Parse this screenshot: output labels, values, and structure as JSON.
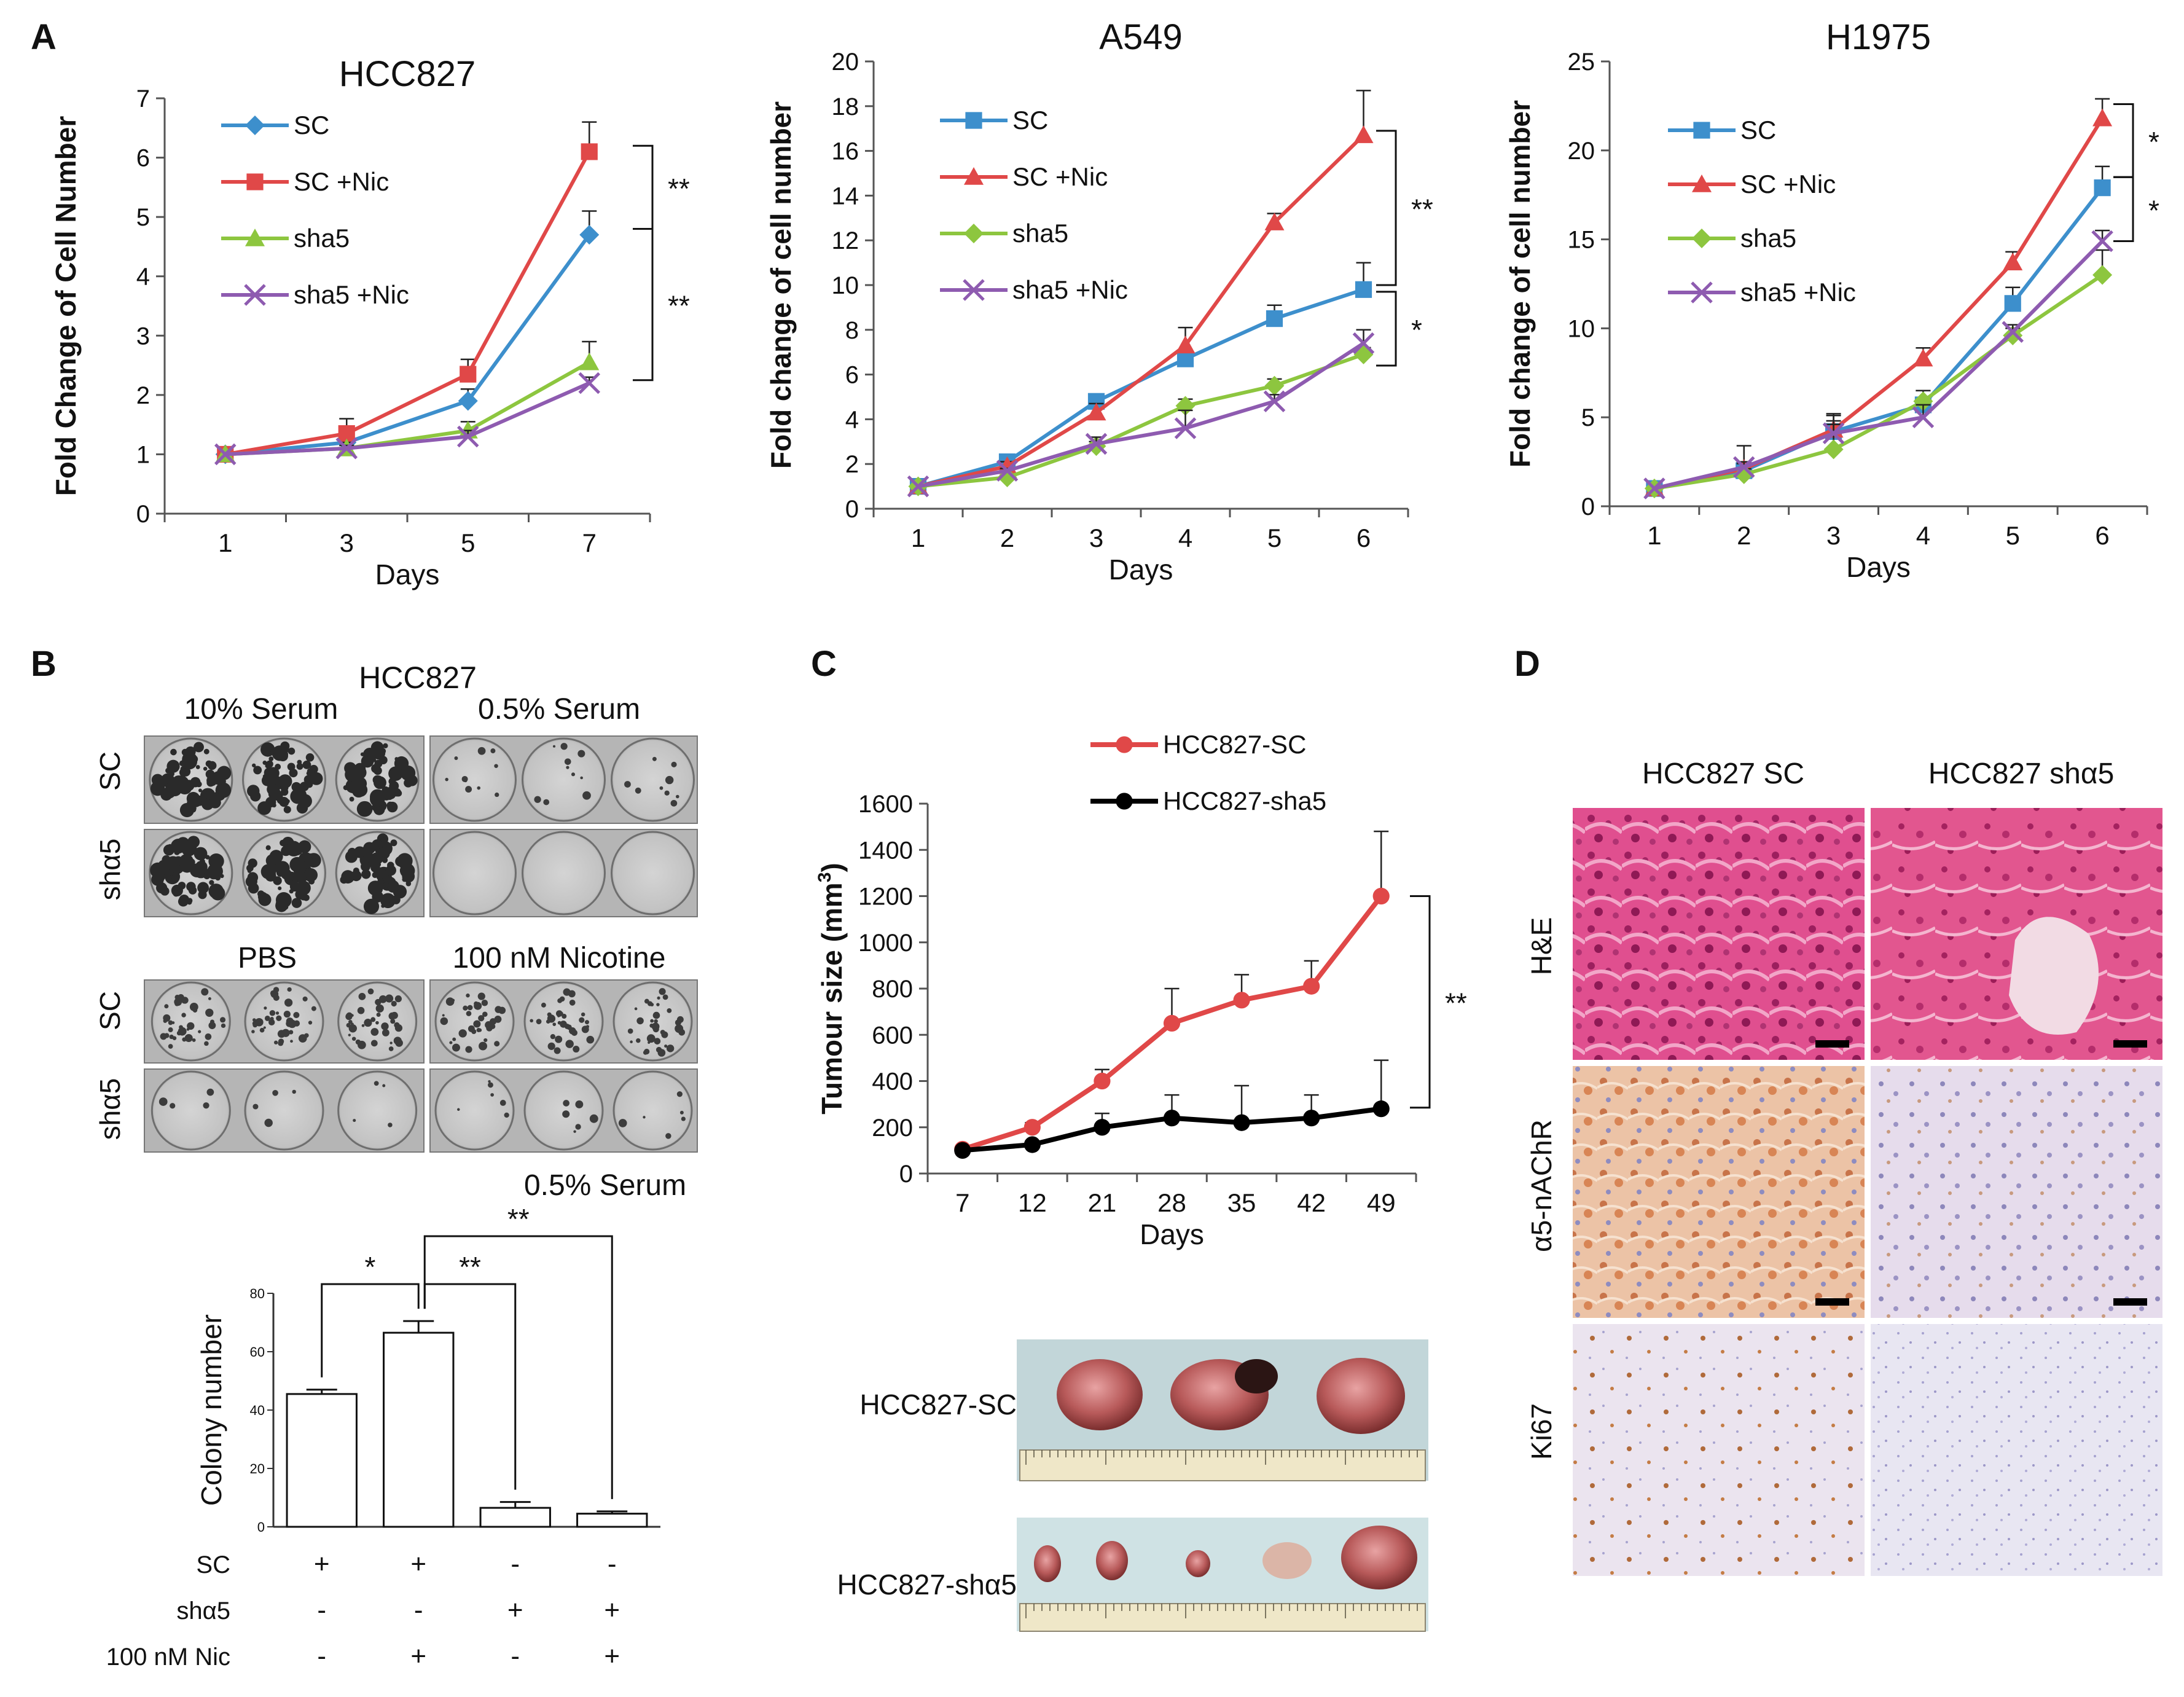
{
  "figure": {
    "panel_labels": [
      "A",
      "B",
      "C",
      "D"
    ]
  },
  "chart_data": [
    {
      "id": "A1",
      "type": "line",
      "title": "HCC827",
      "xlabel": "Days",
      "ylabel": "Fold Change of Cell Number",
      "x": [
        1,
        3,
        5,
        7
      ],
      "xticks": [
        "1",
        "3",
        "5",
        "7"
      ],
      "ylim": [
        0,
        7
      ],
      "yticks": [
        0,
        1,
        2,
        3,
        4,
        5,
        6,
        7
      ],
      "legend_position": "top-left",
      "series": [
        {
          "name": "SC",
          "color": "#3d8fcc",
          "marker": "diamond",
          "values": [
            1,
            1.2,
            1.9,
            4.7
          ],
          "errors": [
            0,
            0.1,
            0.2,
            0.4
          ]
        },
        {
          "name": "SC +Nic",
          "color": "#e04848",
          "marker": "square",
          "values": [
            1,
            1.35,
            2.35,
            6.1
          ],
          "errors": [
            0,
            0.25,
            0.25,
            0.5
          ]
        },
        {
          "name": "sha5",
          "color": "#8dc63f",
          "marker": "triangle",
          "values": [
            1,
            1.1,
            1.4,
            2.55
          ],
          "errors": [
            0,
            0.1,
            0.15,
            0.35
          ]
        },
        {
          "name": "sha5 +Nic",
          "color": "#8e5bb0",
          "marker": "x",
          "values": [
            1,
            1.1,
            1.3,
            2.2
          ],
          "errors": [
            0,
            0.05,
            0.1,
            0.1
          ]
        }
      ],
      "significance": [
        {
          "label": "**",
          "from_value": 6.2,
          "to_value": 4.8
        },
        {
          "label": "**",
          "from_value": 4.8,
          "to_value": 2.25
        }
      ]
    },
    {
      "id": "A2",
      "type": "line",
      "title": "A549",
      "xlabel": "Days",
      "ylabel": "Fold change of cell number",
      "x": [
        1,
        2,
        3,
        4,
        5,
        6
      ],
      "xticks": [
        "1",
        "2",
        "3",
        "4",
        "5",
        "6"
      ],
      "ylim": [
        0,
        20
      ],
      "yticks": [
        0,
        2,
        4,
        6,
        8,
        10,
        12,
        14,
        16,
        18,
        20
      ],
      "legend_position": "top-left",
      "series": [
        {
          "name": "SC",
          "color": "#3d8fcc",
          "marker": "square",
          "values": [
            1,
            2.1,
            4.8,
            6.7,
            8.5,
            9.8
          ],
          "errors": [
            0,
            0.2,
            0.3,
            0.4,
            0.6,
            1.2
          ]
        },
        {
          "name": "SC +Nic",
          "color": "#e04848",
          "marker": "triangle",
          "values": [
            1,
            1.9,
            4.3,
            7.3,
            12.8,
            16.7
          ],
          "errors": [
            0,
            0.2,
            0.4,
            0.8,
            0.4,
            2.0
          ]
        },
        {
          "name": "sha5",
          "color": "#8dc63f",
          "marker": "diamond",
          "values": [
            1,
            1.4,
            2.8,
            4.6,
            5.5,
            6.9
          ],
          "errors": [
            0,
            0.1,
            0.2,
            0.3,
            0.3,
            0.3
          ]
        },
        {
          "name": "sha5 +Nic",
          "color": "#8e5bb0",
          "marker": "x",
          "values": [
            1,
            1.7,
            2.9,
            3.6,
            4.8,
            7.4
          ],
          "errors": [
            0,
            0.1,
            0.3,
            0.8,
            0.3,
            0.6
          ]
        }
      ],
      "significance": [
        {
          "label": "**",
          "from_value": 16.9,
          "to_value": 10.0
        },
        {
          "label": "*",
          "from_value": 9.7,
          "to_value": 6.4
        }
      ]
    },
    {
      "id": "A3",
      "type": "line",
      "title": "H1975",
      "xlabel": "Days",
      "ylabel": "Fold change of cell number",
      "x": [
        1,
        2,
        3,
        4,
        5,
        6
      ],
      "xticks": [
        "1",
        "2",
        "3",
        "4",
        "5",
        "6"
      ],
      "ylim": [
        0,
        25
      ],
      "yticks": [
        0,
        5,
        10,
        15,
        20,
        25
      ],
      "legend_position": "top-left",
      "series": [
        {
          "name": "SC",
          "color": "#3d8fcc",
          "marker": "square",
          "values": [
            1,
            2,
            4.2,
            5.7,
            11.4,
            17.9
          ],
          "errors": [
            0,
            1.4,
            1.0,
            0.8,
            0.9,
            1.2
          ]
        },
        {
          "name": "SC +Nic",
          "color": "#e04848",
          "marker": "triangle",
          "values": [
            1,
            2.1,
            4.3,
            8.3,
            13.7,
            21.8
          ],
          "errors": [
            0,
            0.3,
            0.5,
            0.6,
            0.6,
            1.1
          ]
        },
        {
          "name": "sha5",
          "color": "#8dc63f",
          "marker": "diamond",
          "values": [
            1,
            1.8,
            3.2,
            5.9,
            9.6,
            13.0
          ],
          "errors": [
            0,
            0.3,
            1.9,
            0.6,
            0.4,
            1.4
          ]
        },
        {
          "name": "sha5 +Nic",
          "color": "#8e5bb0",
          "marker": "x",
          "values": [
            1,
            2.2,
            4.1,
            5.0,
            9.8,
            14.9
          ],
          "errors": [
            0,
            0.3,
            0.5,
            0.7,
            0.4,
            0.6
          ]
        }
      ],
      "significance": [
        {
          "label": "*",
          "from_value": 22.6,
          "to_value": 18.5
        },
        {
          "label": "*",
          "from_value": 18.5,
          "to_value": 14.9
        }
      ]
    },
    {
      "id": "B",
      "type": "bar",
      "title": "",
      "xlabel": "",
      "ylabel": "Colony number",
      "categories": [
        "SC",
        "SC + Nic",
        "shα5",
        "shα5 + Nic"
      ],
      "values": [
        45.5,
        66.5,
        6.5,
        4.5
      ],
      "errors": [
        1.5,
        4.0,
        2.0,
        0.8
      ],
      "ylim": [
        0,
        80
      ],
      "yticks": [
        0,
        20,
        40,
        60,
        80
      ],
      "color": "#ffffff",
      "significance": [
        {
          "label": "*",
          "bars": [
            0,
            1
          ]
        },
        {
          "label": "**",
          "bars": [
            1,
            2
          ]
        },
        {
          "label": "**",
          "bars": [
            1,
            3
          ]
        }
      ],
      "condition_table": {
        "rows": [
          {
            "label": "SC",
            "marks": [
              "+",
              "+",
              "-",
              "-"
            ]
          },
          {
            "label": "shα5",
            "marks": [
              "-",
              "-",
              "+",
              "+"
            ]
          },
          {
            "label": "100 nM Nic",
            "marks": [
              "-",
              "+",
              "-",
              "+"
            ]
          }
        ]
      }
    },
    {
      "id": "C",
      "type": "line",
      "title": "",
      "xlabel": "Days",
      "ylabel": "Tumour size (mm3)",
      "ylabel_main": "Tumour size (mm",
      "ylabel_sup": "3",
      "ylabel_end": ")",
      "x": [
        7,
        12,
        21,
        28,
        35,
        42,
        49
      ],
      "xticks": [
        "7",
        "12",
        "21",
        "28",
        "35",
        "42",
        "49"
      ],
      "ylim": [
        0,
        1600
      ],
      "yticks": [
        0,
        200,
        400,
        600,
        800,
        1000,
        1200,
        1400,
        1600
      ],
      "legend_position": "top",
      "series": [
        {
          "name": "HCC827-SC",
          "color": "#e04848",
          "marker": "circle",
          "values": [
            105,
            200,
            400,
            650,
            750,
            810,
            1200
          ],
          "errors": [
            10,
            20,
            50,
            150,
            110,
            110,
            280
          ]
        },
        {
          "name": "HCC827-sha5",
          "color": "#000000",
          "marker": "circle",
          "values": [
            100,
            125,
            200,
            240,
            220,
            240,
            280
          ],
          "errors": [
            10,
            15,
            60,
            100,
            160,
            100,
            210
          ]
        }
      ],
      "significance": [
        {
          "label": "**",
          "from_value": 1200,
          "to_value": 285
        }
      ]
    }
  ],
  "panelB": {
    "title": "HCC827",
    "row_labels_top": [
      "SC",
      "shα5"
    ],
    "row_labels_bottom": [
      "SC",
      "shα5"
    ],
    "col_headers_top": [
      "10% Serum",
      "0.5% Serum"
    ],
    "col_headers_bottom": [
      "PBS",
      "100 nM Nicotine"
    ],
    "footer": "0.5% Serum"
  },
  "panelC": {
    "photo_labels": [
      "HCC827-SC",
      "HCC827-shα5"
    ]
  },
  "panelD": {
    "col_headers": [
      "HCC827 SC",
      "HCC827 shα5"
    ],
    "row_labels": [
      "H&E",
      "α5-nAChR",
      "Ki67"
    ]
  }
}
